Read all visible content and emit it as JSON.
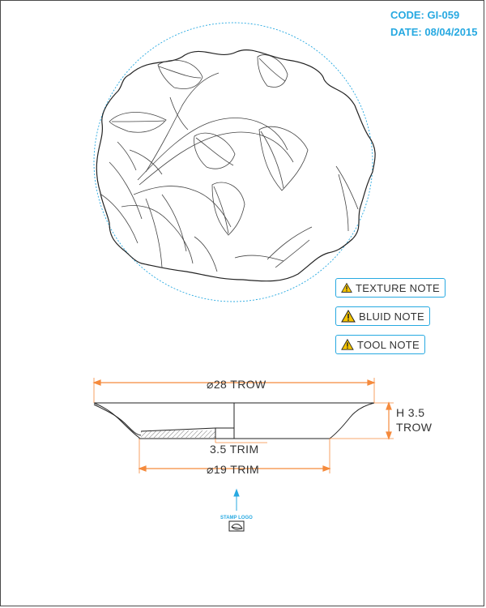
{
  "header": {
    "code": "CODE: GI-059",
    "date": "DATE: 08/04/2015"
  },
  "notes": [
    {
      "label": "TEXTURE NOTE",
      "icon": "warning-icon"
    },
    {
      "label": "BLUID NOTE",
      "icon": "warning-icon"
    },
    {
      "label": "TOOL NOTE",
      "icon": "warning-icon"
    }
  ],
  "dimensions": {
    "top_diameter": "⌀28 TROW",
    "height_line1": "H 3.5",
    "height_line2": "TROW",
    "trim_thickness": "3.5 TRIM",
    "base_diameter": "⌀19 TRIM"
  },
  "stamp": {
    "label": "STAMP LOGO",
    "icon": "leaf-stamp-icon"
  },
  "colors": {
    "accent": "#27a9e1",
    "dimension": "#f58a3c",
    "line": "#333333",
    "warning": "#f5c400"
  }
}
